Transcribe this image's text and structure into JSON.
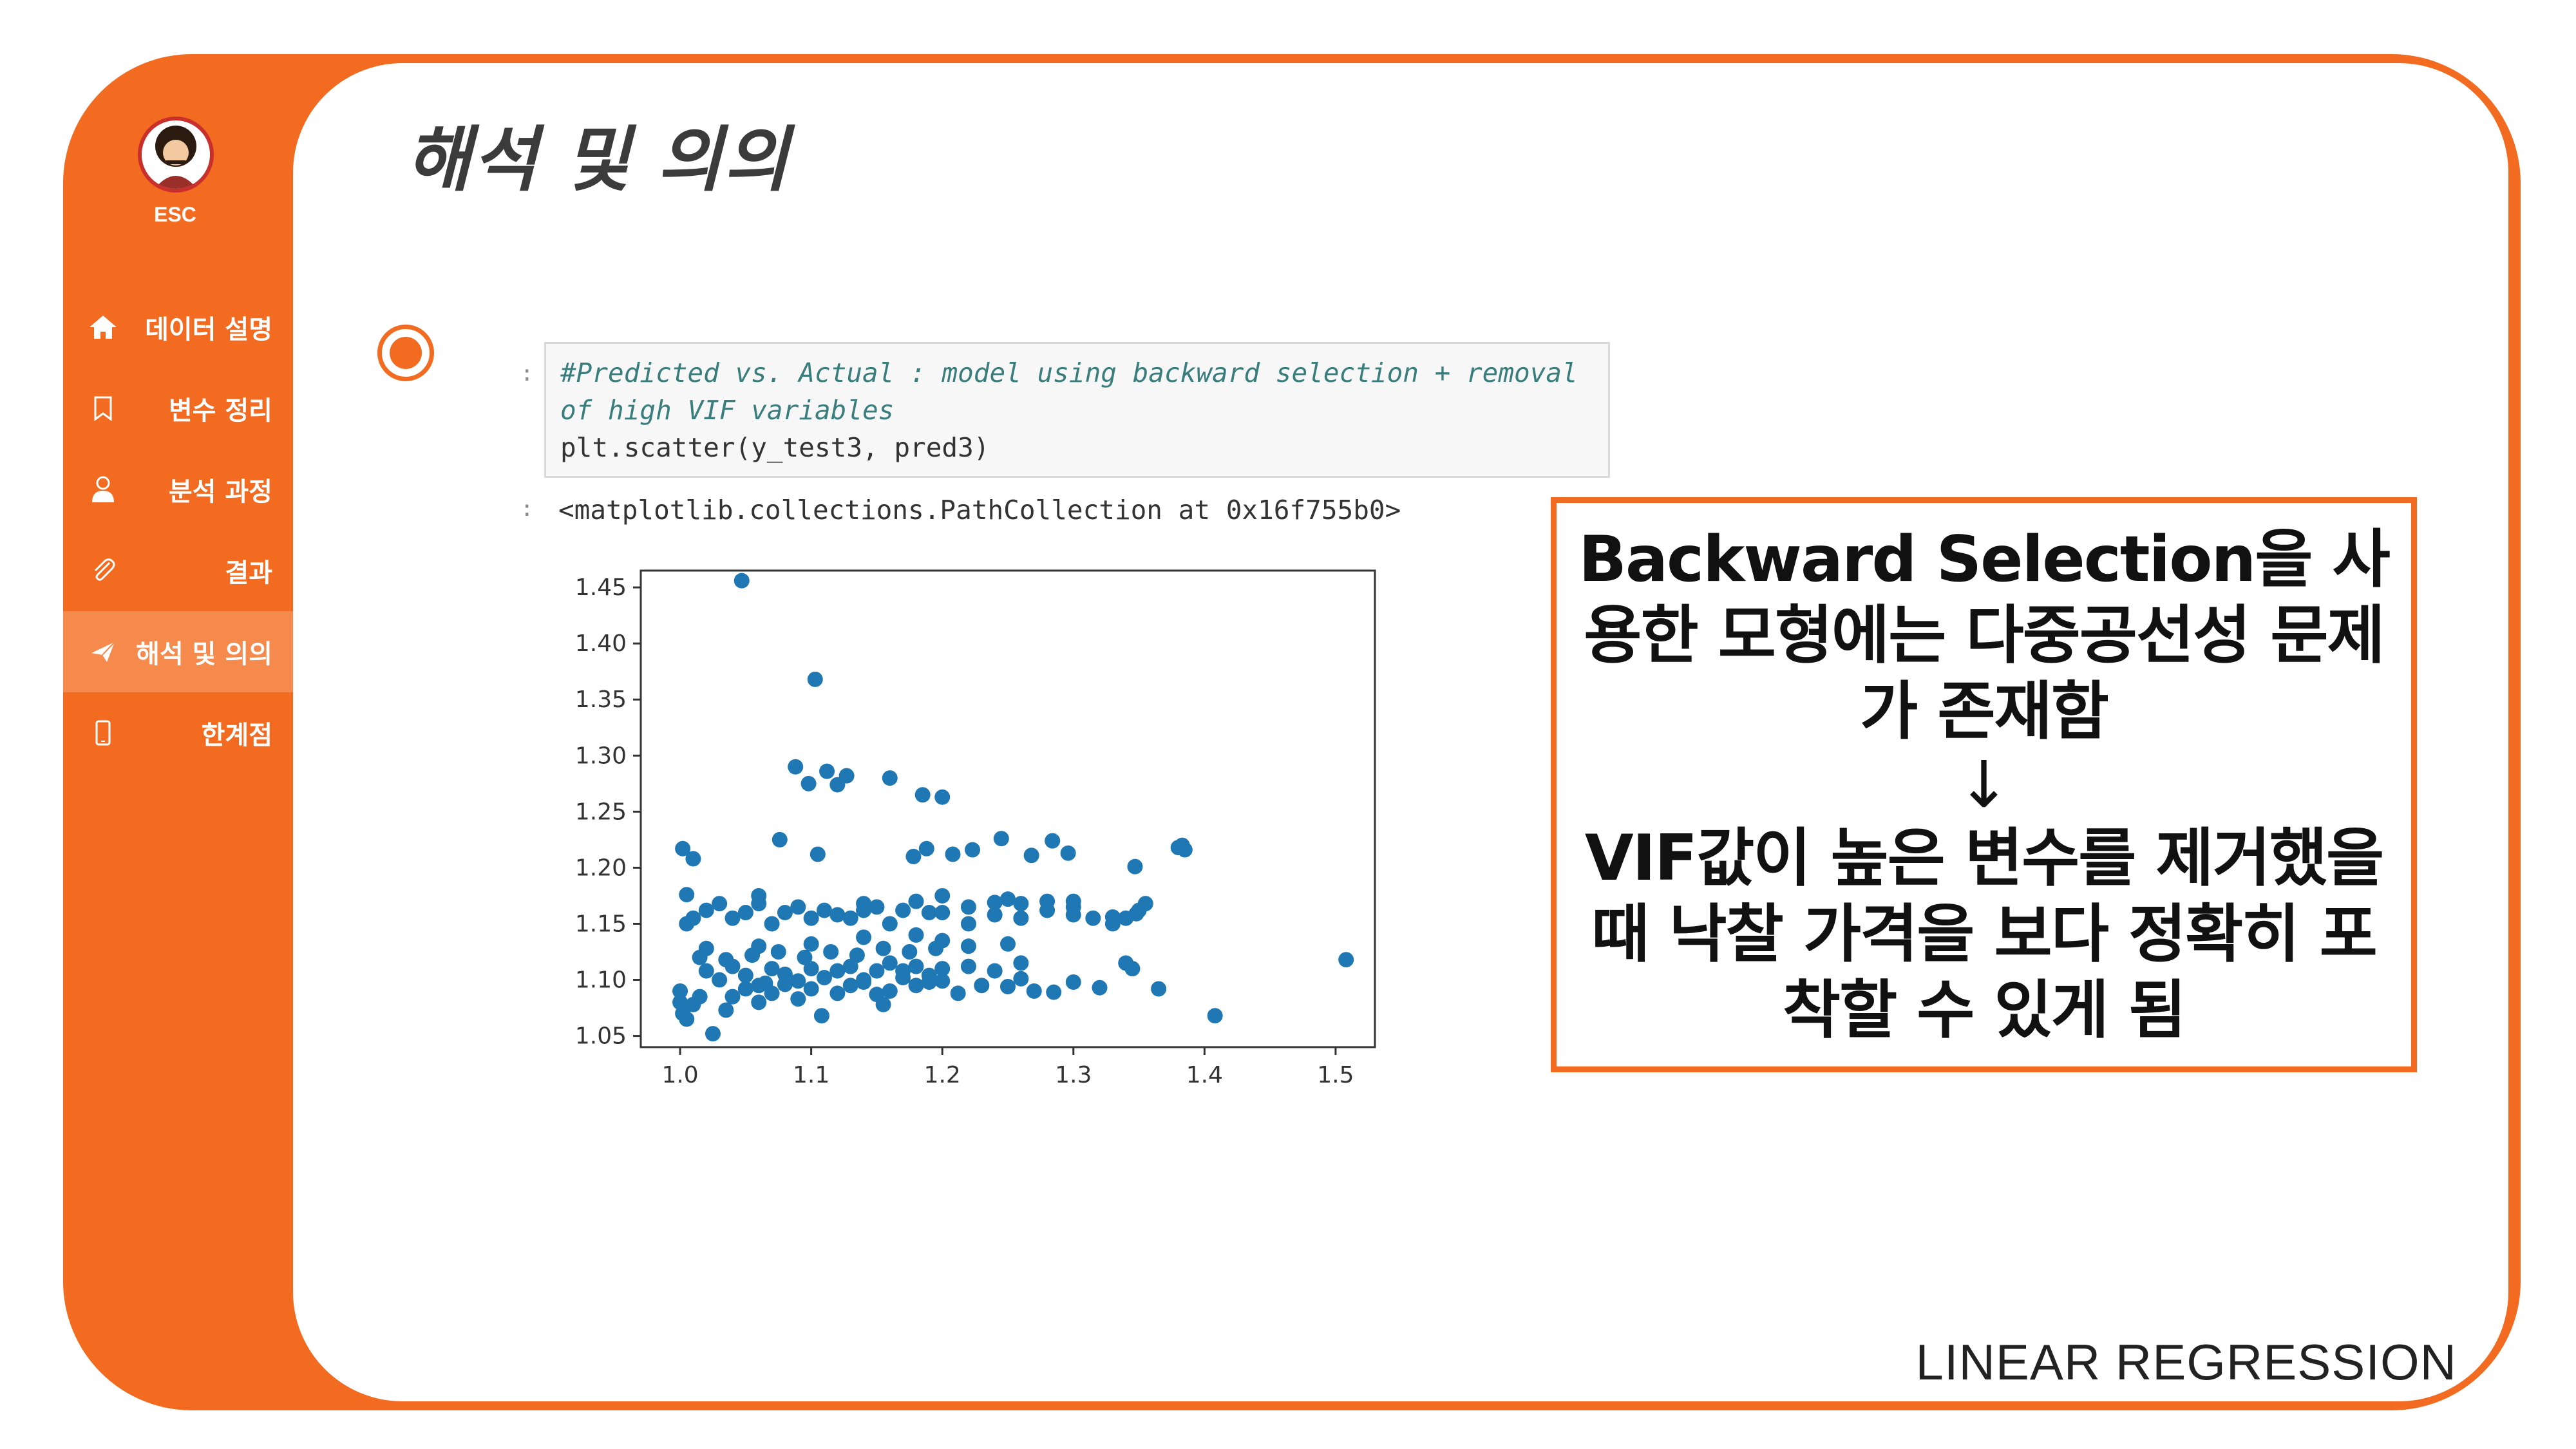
{
  "sidebar": {
    "avatar_label": "ESC",
    "items": [
      {
        "label": "데이터 설명",
        "icon": "home-icon",
        "active": false
      },
      {
        "label": "변수 정리",
        "icon": "bookmark-icon",
        "active": false
      },
      {
        "label": "분석 과정",
        "icon": "user-icon",
        "active": false
      },
      {
        "label": "결과",
        "icon": "paperclip-icon",
        "active": false
      },
      {
        "label": "해석 및 의의",
        "icon": "paper-plane-icon",
        "active": true
      },
      {
        "label": "한계점",
        "icon": "mobile-icon",
        "active": false
      }
    ]
  },
  "page": {
    "title": "해석 및 의의",
    "footer": "LINEAR REGRESSION"
  },
  "notebook": {
    "input_prompt": ":",
    "output_prompt": ":",
    "comment": "#Predicted vs. Actual : model using backward selection + removal of high VIF variables",
    "code": "plt.scatter(y_test3, pred3)",
    "output": "<matplotlib.collections.PathCollection at 0x16f755b0>"
  },
  "callout": {
    "line1": "Backward Selection을 사용한 모형에는 다중공선성 문제가 존재함",
    "arrow": "↓",
    "line2": "VIF값이 높은 변수를 제거했을 때 낙찰 가격을 보다 정확히 포착할 수 있게 됨"
  },
  "colors": {
    "accent": "#f26b21",
    "marker": "#1f77b4"
  },
  "chart_data": {
    "type": "scatter",
    "title": "",
    "xlabel": "",
    "ylabel": "",
    "xlim": [
      0.97,
      1.53
    ],
    "ylim": [
      1.04,
      1.465
    ],
    "xticks": [
      "1.0",
      "1.1",
      "1.2",
      "1.3",
      "1.4",
      "1.5"
    ],
    "yticks": [
      "1.05",
      "1.10",
      "1.15",
      "1.20",
      "1.25",
      "1.30",
      "1.35",
      "1.40",
      "1.45"
    ],
    "grid": false,
    "series": [
      {
        "color": "#1f77b4",
        "points": [
          [
            1.047,
            1.456
          ],
          [
            1.103,
            1.368
          ],
          [
            1.088,
            1.29
          ],
          [
            1.112,
            1.286
          ],
          [
            1.127,
            1.282
          ],
          [
            1.098,
            1.275
          ],
          [
            1.12,
            1.274
          ],
          [
            1.16,
            1.28
          ],
          [
            1.185,
            1.265
          ],
          [
            1.2,
            1.263
          ],
          [
            1.076,
            1.225
          ],
          [
            1.105,
            1.212
          ],
          [
            1.002,
            1.217
          ],
          [
            1.01,
            1.208
          ],
          [
            1.178,
            1.21
          ],
          [
            1.188,
            1.217
          ],
          [
            1.208,
            1.212
          ],
          [
            1.223,
            1.216
          ],
          [
            1.245,
            1.226
          ],
          [
            1.268,
            1.211
          ],
          [
            1.284,
            1.224
          ],
          [
            1.296,
            1.213
          ],
          [
            1.347,
            1.201
          ],
          [
            1.38,
            1.218
          ],
          [
            1.383,
            1.22
          ],
          [
            1.385,
            1.216
          ],
          [
            1.355,
            1.168
          ],
          [
            1.348,
            1.159
          ],
          [
            1.315,
            1.155
          ],
          [
            1.005,
            1.176
          ],
          [
            1.06,
            1.175
          ],
          [
            1.14,
            1.168
          ],
          [
            1.2,
            1.175
          ],
          [
            1.25,
            1.172
          ],
          [
            1.3,
            1.17
          ],
          [
            1.33,
            1.156
          ],
          [
            1.0,
            1.09
          ],
          [
            1.0,
            1.08
          ],
          [
            1.002,
            1.07
          ],
          [
            1.005,
            1.065
          ],
          [
            1.01,
            1.078
          ],
          [
            1.015,
            1.085
          ],
          [
            1.025,
            1.052
          ],
          [
            1.035,
            1.073
          ],
          [
            1.04,
            1.085
          ],
          [
            1.05,
            1.092
          ],
          [
            1.06,
            1.08
          ],
          [
            1.065,
            1.097
          ],
          [
            1.07,
            1.088
          ],
          [
            1.08,
            1.096
          ],
          [
            1.09,
            1.083
          ],
          [
            1.1,
            1.092
          ],
          [
            1.108,
            1.068
          ],
          [
            1.12,
            1.088
          ],
          [
            1.13,
            1.095
          ],
          [
            1.14,
            1.1
          ],
          [
            1.15,
            1.087
          ],
          [
            1.155,
            1.078
          ],
          [
            1.16,
            1.09
          ],
          [
            1.17,
            1.102
          ],
          [
            1.18,
            1.095
          ],
          [
            1.19,
            1.098
          ],
          [
            1.2,
            1.099
          ],
          [
            1.212,
            1.088
          ],
          [
            1.23,
            1.095
          ],
          [
            1.25,
            1.094
          ],
          [
            1.26,
            1.101
          ],
          [
            1.27,
            1.09
          ],
          [
            1.285,
            1.089
          ],
          [
            1.3,
            1.098
          ],
          [
            1.32,
            1.093
          ],
          [
            1.34,
            1.115
          ],
          [
            1.345,
            1.11
          ],
          [
            1.365,
            1.092
          ],
          [
            1.408,
            1.068
          ],
          [
            1.508,
            1.118
          ],
          [
            1.33,
            1.15
          ],
          [
            1.34,
            1.155
          ],
          [
            1.35,
            1.162
          ],
          [
            1.3,
            1.165
          ],
          [
            1.28,
            1.17
          ],
          [
            1.26,
            1.168
          ],
          [
            1.24,
            1.169
          ],
          [
            1.22,
            1.165
          ],
          [
            1.19,
            1.16
          ],
          [
            1.17,
            1.162
          ],
          [
            1.15,
            1.165
          ],
          [
            1.13,
            1.155
          ],
          [
            1.11,
            1.162
          ],
          [
            1.09,
            1.165
          ],
          [
            1.07,
            1.15
          ],
          [
            1.05,
            1.16
          ],
          [
            1.03,
            1.168
          ],
          [
            1.01,
            1.155
          ],
          [
            1.005,
            1.15
          ],
          [
            1.02,
            1.162
          ],
          [
            1.04,
            1.155
          ],
          [
            1.06,
            1.168
          ],
          [
            1.08,
            1.16
          ],
          [
            1.1,
            1.155
          ],
          [
            1.12,
            1.158
          ],
          [
            1.14,
            1.162
          ],
          [
            1.16,
            1.15
          ],
          [
            1.18,
            1.17
          ],
          [
            1.2,
            1.16
          ],
          [
            1.22,
            1.15
          ],
          [
            1.24,
            1.158
          ],
          [
            1.26,
            1.155
          ],
          [
            1.28,
            1.162
          ],
          [
            1.3,
            1.158
          ],
          [
            1.02,
            1.108
          ],
          [
            1.03,
            1.1
          ],
          [
            1.04,
            1.112
          ],
          [
            1.05,
            1.104
          ],
          [
            1.06,
            1.095
          ],
          [
            1.07,
            1.11
          ],
          [
            1.08,
            1.105
          ],
          [
            1.09,
            1.099
          ],
          [
            1.1,
            1.11
          ],
          [
            1.11,
            1.102
          ],
          [
            1.12,
            1.108
          ],
          [
            1.13,
            1.112
          ],
          [
            1.14,
            1.098
          ],
          [
            1.15,
            1.108
          ],
          [
            1.16,
            1.115
          ],
          [
            1.17,
            1.108
          ],
          [
            1.18,
            1.112
          ],
          [
            1.19,
            1.104
          ],
          [
            1.2,
            1.11
          ],
          [
            1.22,
            1.112
          ],
          [
            1.24,
            1.108
          ],
          [
            1.26,
            1.115
          ],
          [
            1.18,
            1.14
          ],
          [
            1.2,
            1.135
          ],
          [
            1.22,
            1.13
          ],
          [
            1.14,
            1.138
          ],
          [
            1.25,
            1.132
          ],
          [
            1.1,
            1.132
          ],
          [
            1.06,
            1.13
          ],
          [
            1.02,
            1.128
          ],
          [
            1.015,
            1.12
          ],
          [
            1.035,
            1.118
          ],
          [
            1.055,
            1.122
          ],
          [
            1.075,
            1.125
          ],
          [
            1.095,
            1.12
          ],
          [
            1.115,
            1.125
          ],
          [
            1.135,
            1.122
          ],
          [
            1.155,
            1.128
          ],
          [
            1.175,
            1.125
          ],
          [
            1.195,
            1.128
          ]
        ]
      }
    ]
  }
}
